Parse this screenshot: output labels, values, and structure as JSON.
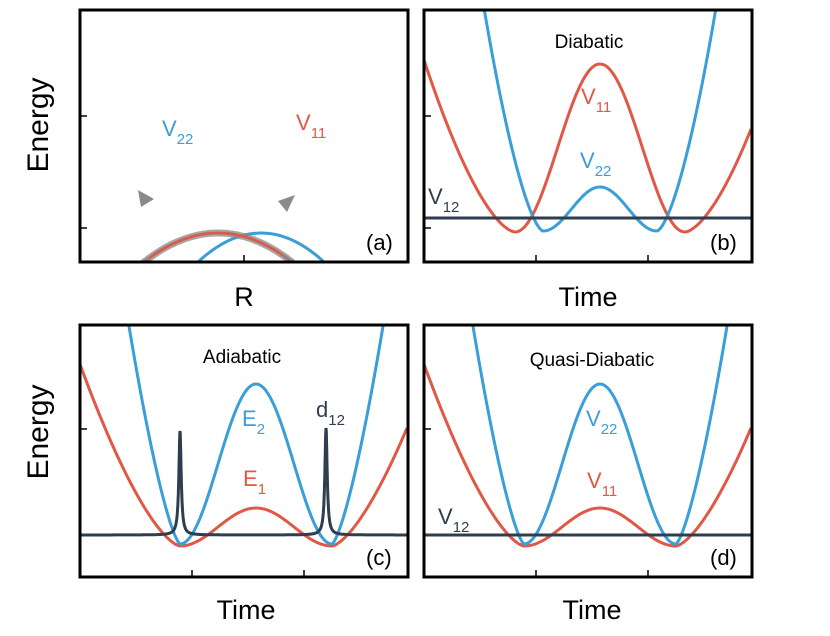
{
  "y_axis_label": "Energy",
  "colors": {
    "red": "#e15846",
    "blue": "#3a9ed8",
    "dark": "#2f3e4f",
    "gray": "#8a8a8a"
  },
  "panels": {
    "a": {
      "tag": "(a)",
      "x_label": "R",
      "curve_labels": {
        "v22": {
          "main": "V",
          "sub": "22"
        },
        "v11": {
          "main": "V",
          "sub": "11"
        }
      }
    },
    "b": {
      "tag": "(b)",
      "title": "Diabatic",
      "x_label": "Time",
      "curve_labels": {
        "v11": {
          "main": "V",
          "sub": "11"
        },
        "v22": {
          "main": "V",
          "sub": "22"
        },
        "v12": {
          "main": "V",
          "sub": "12"
        }
      }
    },
    "c": {
      "tag": "(c)",
      "title": "Adiabatic",
      "x_label": "Time",
      "curve_labels": {
        "e2": {
          "main": "E",
          "sub": "2"
        },
        "d12": {
          "main": "d",
          "sub": "12"
        },
        "e1": {
          "main": "E",
          "sub": "1"
        }
      }
    },
    "d": {
      "tag": "(d)",
      "title": "Quasi-Diabatic",
      "x_label": "Time",
      "curve_labels": {
        "v22": {
          "main": "V",
          "sub": "22"
        },
        "v11": {
          "main": "V",
          "sub": "11"
        },
        "v12": {
          "main": "V",
          "sub": "12"
        }
      }
    }
  }
}
